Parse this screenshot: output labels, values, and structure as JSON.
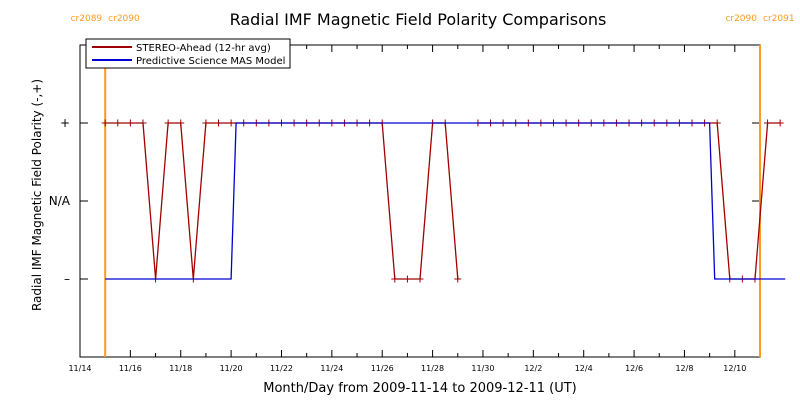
{
  "chart_data": {
    "type": "line",
    "title": "Radial IMF Magnetic Field Polarity Comparisons",
    "xlabel": "Month/Day from 2009-11-14 to 2009-12-11 (UT)",
    "ylabel": "Radial IMF Magnetic Field Polarity (-,+)",
    "x_range": [
      "2009-11-14",
      "2009-12-11"
    ],
    "y_ticks": [
      {
        "label": "+",
        "value": 1
      },
      {
        "label": "N/A",
        "value": 0
      },
      {
        "label": "–",
        "value": -1
      }
    ],
    "ylim": [
      -2,
      2
    ],
    "x_tick_labels": [
      "11/14",
      "11/16",
      "11/18",
      "11/20",
      "11/22",
      "11/24",
      "11/26",
      "11/28",
      "11/30",
      "12/2",
      "12/4",
      "12/6",
      "12/8",
      "12/10"
    ],
    "x_tick_days": [
      0,
      2,
      4,
      6,
      8,
      10,
      12,
      14,
      16,
      18,
      20,
      22,
      24,
      26
    ],
    "legend_position": "top-left",
    "carrington": [
      {
        "left": "cr2089",
        "right": "cr2090",
        "day": 1.0,
        "color": "#ff9a1f"
      },
      {
        "left": "cr2090",
        "right": "cr2091",
        "day": 27.0,
        "color": "#ff9a1f"
      }
    ],
    "series": [
      {
        "name": "STEREO-Ahead (12-hr avg)",
        "color": "#a00000",
        "markers": true,
        "points": [
          [
            1.0,
            1
          ],
          [
            1.5,
            1
          ],
          [
            2.0,
            1
          ],
          [
            2.5,
            1
          ],
          [
            3.0,
            -1
          ],
          [
            3.5,
            1
          ],
          [
            4.0,
            1
          ],
          [
            4.5,
            -1
          ],
          [
            5.0,
            1
          ],
          [
            5.5,
            1
          ],
          [
            6.0,
            1
          ],
          [
            6.5,
            1
          ],
          [
            7.0,
            1
          ],
          [
            7.5,
            1
          ],
          [
            8.0,
            1
          ],
          [
            8.5,
            1
          ],
          [
            9.0,
            1
          ],
          [
            9.5,
            1
          ],
          [
            10.0,
            1
          ],
          [
            10.5,
            1
          ],
          [
            11.0,
            1
          ],
          [
            11.5,
            1
          ],
          [
            12.0,
            1
          ],
          [
            12.5,
            -1
          ],
          [
            13.0,
            -1
          ],
          [
            13.5,
            -1
          ],
          [
            14.0,
            1
          ],
          [
            14.5,
            1
          ],
          [
            15.0,
            -1
          ],
          null,
          [
            15.8,
            1
          ],
          [
            16.3,
            1
          ],
          [
            16.8,
            1
          ],
          [
            17.3,
            1
          ],
          [
            17.8,
            1
          ],
          [
            18.3,
            1
          ],
          [
            18.8,
            1
          ],
          [
            19.3,
            1
          ],
          [
            19.8,
            1
          ],
          [
            20.3,
            1
          ],
          [
            20.8,
            1
          ],
          [
            21.3,
            1
          ],
          [
            21.8,
            1
          ],
          [
            22.3,
            1
          ],
          [
            22.8,
            1
          ],
          [
            23.3,
            1
          ],
          [
            23.8,
            1
          ],
          [
            24.3,
            1
          ],
          [
            24.8,
            1
          ],
          [
            25.3,
            1
          ],
          [
            25.8,
            -1
          ],
          [
            26.3,
            -1
          ],
          [
            26.8,
            -1
          ],
          [
            27.3,
            1
          ],
          [
            27.8,
            1
          ]
        ]
      },
      {
        "name": "Predictive Science MAS Model",
        "color": "#0000d0",
        "markers": false,
        "points": [
          [
            1.0,
            -1
          ],
          [
            6.0,
            -1
          ],
          [
            6.2,
            1
          ],
          [
            25.0,
            1
          ],
          [
            25.2,
            -1
          ],
          [
            28.0,
            -1
          ]
        ]
      }
    ]
  }
}
